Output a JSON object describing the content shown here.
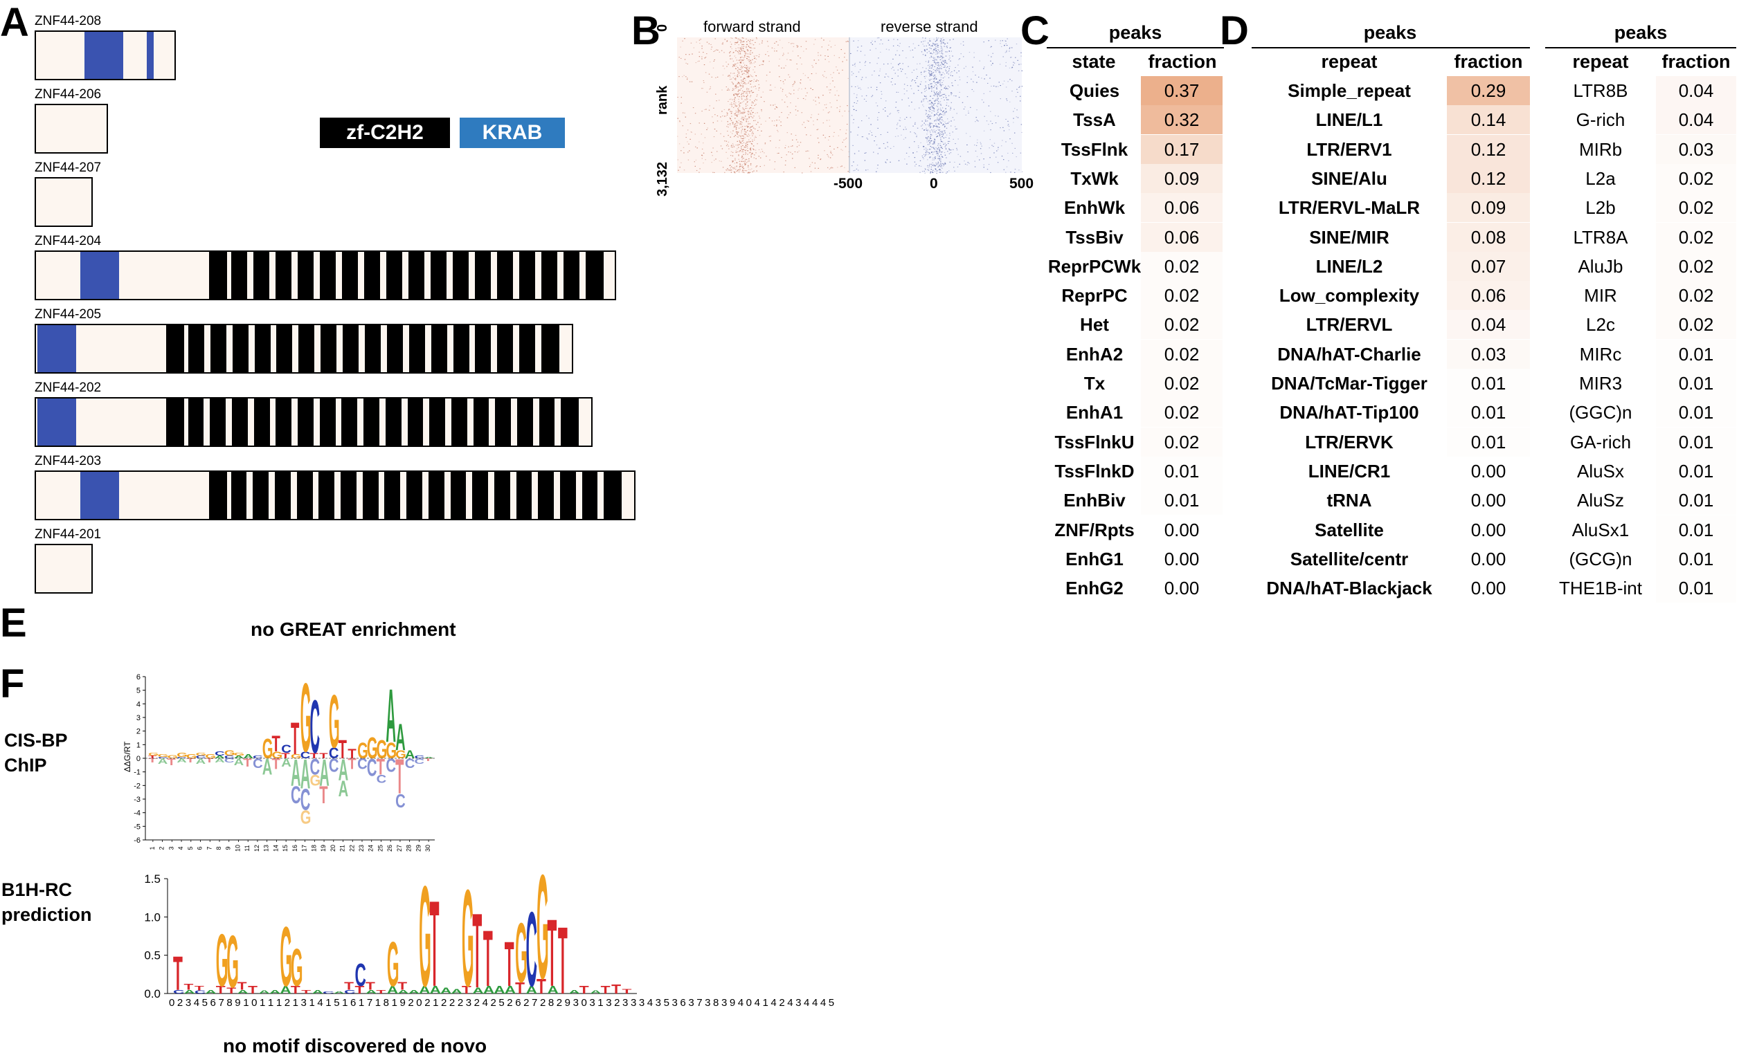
{
  "panel_labels": {
    "a": "A",
    "b": "B",
    "c": "C",
    "d": "D",
    "e": "E",
    "f": "F"
  },
  "panel_a": {
    "legend": {
      "zf": "zf-C2H2",
      "krab": "KRAB",
      "zf_color": "#000000",
      "krab_color": "#2f7bbf"
    },
    "isoforms": [
      {
        "name": "ZNF44-208"
      },
      {
        "name": "ZNF44-206"
      },
      {
        "name": "ZNF44-207"
      },
      {
        "name": "ZNF44-204"
      },
      {
        "name": "ZNF44-205"
      },
      {
        "name": "ZNF44-202"
      },
      {
        "name": "ZNF44-203"
      },
      {
        "name": "ZNF44-201"
      }
    ]
  },
  "panel_b": {
    "forward_label": "forward strand",
    "reverse_label": "reverse strand",
    "rank_label": "rank",
    "rank_top": "0",
    "rank_bottom": "3,132",
    "x_ticks": [
      "-500",
      "0",
      "500"
    ]
  },
  "panel_c": {
    "header": "peaks",
    "col_state": "state",
    "col_fraction": "fraction",
    "rows": [
      {
        "state": "Quies",
        "fraction": "0.37"
      },
      {
        "state": "TssA",
        "fraction": "0.32"
      },
      {
        "state": "TssFlnk",
        "fraction": "0.17"
      },
      {
        "state": "TxWk",
        "fraction": "0.09"
      },
      {
        "state": "EnhWk",
        "fraction": "0.06"
      },
      {
        "state": "TssBiv",
        "fraction": "0.06"
      },
      {
        "state": "ReprPCWk",
        "fraction": "0.02"
      },
      {
        "state": "ReprPC",
        "fraction": "0.02"
      },
      {
        "state": "Het",
        "fraction": "0.02"
      },
      {
        "state": "EnhA2",
        "fraction": "0.02"
      },
      {
        "state": "Tx",
        "fraction": "0.02"
      },
      {
        "state": "EnhA1",
        "fraction": "0.02"
      },
      {
        "state": "TssFlnkU",
        "fraction": "0.02"
      },
      {
        "state": "TssFlnkD",
        "fraction": "0.01"
      },
      {
        "state": "EnhBiv",
        "fraction": "0.01"
      },
      {
        "state": "ZNF/Rpts",
        "fraction": "0.00"
      },
      {
        "state": "EnhG1",
        "fraction": "0.00"
      },
      {
        "state": "EnhG2",
        "fraction": "0.00"
      }
    ]
  },
  "panel_d": {
    "header_left": "peaks",
    "header_right": "peaks",
    "col_repeat": "repeat",
    "col_fraction": "fraction",
    "left_rows": [
      {
        "repeat": "Simple_repeat",
        "fraction": "0.29"
      },
      {
        "repeat": "LINE/L1",
        "fraction": "0.14"
      },
      {
        "repeat": "LTR/ERV1",
        "fraction": "0.12"
      },
      {
        "repeat": "SINE/Alu",
        "fraction": "0.12"
      },
      {
        "repeat": "LTR/ERVL-MaLR",
        "fraction": "0.09"
      },
      {
        "repeat": "SINE/MIR",
        "fraction": "0.08"
      },
      {
        "repeat": "LINE/L2",
        "fraction": "0.07"
      },
      {
        "repeat": "Low_complexity",
        "fraction": "0.06"
      },
      {
        "repeat": "LTR/ERVL",
        "fraction": "0.04"
      },
      {
        "repeat": "DNA/hAT-Charlie",
        "fraction": "0.03"
      },
      {
        "repeat": "DNA/TcMar-Tigger",
        "fraction": "0.01"
      },
      {
        "repeat": "DNA/hAT-Tip100",
        "fraction": "0.01"
      },
      {
        "repeat": "LTR/ERVK",
        "fraction": "0.01"
      },
      {
        "repeat": "LINE/CR1",
        "fraction": "0.00"
      },
      {
        "repeat": "tRNA",
        "fraction": "0.00"
      },
      {
        "repeat": "Satellite",
        "fraction": "0.00"
      },
      {
        "repeat": "Satellite/centr",
        "fraction": "0.00"
      },
      {
        "repeat": "DNA/hAT-Blackjack",
        "fraction": "0.00"
      }
    ],
    "right_rows": [
      {
        "repeat": "LTR8B",
        "fraction": "0.04"
      },
      {
        "repeat": "G-rich",
        "fraction": "0.04"
      },
      {
        "repeat": "MIRb",
        "fraction": "0.03"
      },
      {
        "repeat": "L2a",
        "fraction": "0.02"
      },
      {
        "repeat": "L2b",
        "fraction": "0.02"
      },
      {
        "repeat": "LTR8A",
        "fraction": "0.02"
      },
      {
        "repeat": "AluJb",
        "fraction": "0.02"
      },
      {
        "repeat": "MIR",
        "fraction": "0.02"
      },
      {
        "repeat": "L2c",
        "fraction": "0.02"
      },
      {
        "repeat": "MIRc",
        "fraction": "0.01"
      },
      {
        "repeat": "MIR3",
        "fraction": "0.01"
      },
      {
        "repeat": "(GGC)n",
        "fraction": "0.01"
      },
      {
        "repeat": "GA-rich",
        "fraction": "0.01"
      },
      {
        "repeat": "AluSx",
        "fraction": "0.01"
      },
      {
        "repeat": "AluSz",
        "fraction": "0.01"
      },
      {
        "repeat": "AluSx1",
        "fraction": "0.01"
      },
      {
        "repeat": "(GCG)n",
        "fraction": "0.01"
      },
      {
        "repeat": "THE1B-int",
        "fraction": "0.01"
      }
    ]
  },
  "panel_e": {
    "note": "no GREAT enrichment"
  },
  "panel_f": {
    "cisbp_label_line1": "CIS-BP",
    "cisbp_label_line2": "ChIP",
    "b1h_label_line1": "B1H-RC",
    "b1h_label_line2": "prediction",
    "cisbp_ylabel": "ΔΔG/RT",
    "cisbp_yticks": [
      "6",
      "5",
      "4",
      "3",
      "2",
      "1",
      "0",
      "-1",
      "-2",
      "-3",
      "-4",
      "-5",
      "-6"
    ],
    "cisbp_xticks": [
      "1",
      "2",
      "3",
      "4",
      "5",
      "6",
      "7",
      "8",
      "9",
      "10",
      "11",
      "12",
      "13",
      "14",
      "15",
      "16",
      "17",
      "18",
      "19",
      "20",
      "21",
      "22",
      "23",
      "24",
      "25",
      "26",
      "27",
      "28",
      "29",
      "30"
    ],
    "b1h_yticks": [
      "1.5",
      "1.0",
      "0.5",
      "0.0"
    ],
    "b1h_xticks": "0 2 3 4 5 6 7 8 9 1 0 1 1 1 2 1 3 1 4 1 5 1 6 1 7 1 8 1 9 2 0 2 1 2 2 2 3 2 4 2 5 2 6 2 7 2 8 2 9 3 0 3 1 3 2 3 3 3 4 3 5 3 6 3 7 3 8 3 9 4 0 4 1 4 2 4 3 4 4 4 5",
    "note": "no motif discovered de novo"
  }
}
